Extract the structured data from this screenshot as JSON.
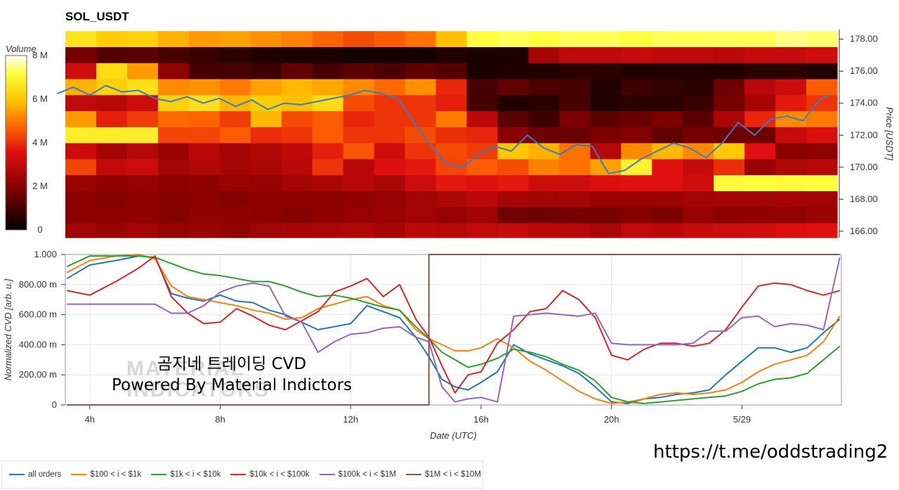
{
  "title": "SOL_USDT",
  "watermark": {
    "line1": "MATERIAL",
    "line2": "INDICATORS"
  },
  "overlay_text": {
    "line1": "곰지네 트레이딩 CVD",
    "line2": "Powered By Material Indictors"
  },
  "url_text": "https://t.me/oddstrading2",
  "legend": [
    {
      "label": "all orders",
      "color": "#1f77b4"
    },
    {
      "label": "$100 < i < $1k",
      "color": "#ff7f0e"
    },
    {
      "label": "$1k < i < $10k",
      "color": "#2ca02c"
    },
    {
      "label": "$10k < i < $100k",
      "color": "#d62728"
    },
    {
      "label": "$100k < i < $1M",
      "color": "#9467bd"
    },
    {
      "label": "$1M < i < $10M",
      "color": "#8c564b"
    }
  ],
  "chart_data": [
    {
      "type": "heatmap",
      "title": "SOL_USDT",
      "colorbar_label": "Volume",
      "colorbar_ticks": [
        "0",
        "2 M",
        "4 M",
        "6 M",
        "8 M"
      ],
      "colorbar_range": [
        0,
        8
      ],
      "ylabel": "Price [USDT]",
      "yticks": [
        "166.00",
        "168.00",
        "170.00",
        "172.00",
        "174.00",
        "176.00",
        "178.00"
      ],
      "ylim": [
        165.6,
        178.6
      ],
      "price_series": {
        "x": [
          3.0,
          3.5,
          4.0,
          4.5,
          5.0,
          5.5,
          6.0,
          6.5,
          7.0,
          7.5,
          8.0,
          8.5,
          9.0,
          9.5,
          10.0,
          10.5,
          11.0,
          11.5,
          12.0,
          12.5,
          13.0,
          13.5,
          14.0,
          14.5,
          15.0,
          15.5,
          16.0,
          16.5,
          17.0,
          17.5,
          18.0,
          18.5,
          19.0,
          19.5,
          20.0,
          20.5,
          21.0,
          21.5,
          22.0,
          22.5,
          23.0,
          23.5,
          24.0,
          24.5,
          25.0,
          25.5,
          26.0,
          26.5,
          26.8
        ],
        "y": [
          174.6,
          175.0,
          174.5,
          175.1,
          174.7,
          174.8,
          174.3,
          174.1,
          174.4,
          174.0,
          174.3,
          173.8,
          174.2,
          173.6,
          174.0,
          173.9,
          174.1,
          174.3,
          174.5,
          174.8,
          174.6,
          174.3,
          172.8,
          171.4,
          170.2,
          170.0,
          170.8,
          171.3,
          171.0,
          172.0,
          171.2,
          170.8,
          171.4,
          171.3,
          169.6,
          169.8,
          170.5,
          171.0,
          171.5,
          171.2,
          170.6,
          171.5,
          172.8,
          172.0,
          173.0,
          173.2,
          172.9,
          174.2,
          174.5
        ]
      },
      "rows": [
        {
          "price": 178.0,
          "values": [
            6.6,
            6.1,
            6.2,
            5.7,
            5.4,
            5.5,
            5.3,
            5.1,
            4.7,
            4.4,
            4.6,
            4.9,
            5.9,
            7.2,
            7.3,
            7.2,
            7.3,
            7.3,
            7.2,
            7.3,
            7.3,
            7.3,
            7.3,
            7.5,
            7.4
          ]
        },
        {
          "price": 177.0,
          "values": [
            1.7,
            1.2,
            1.3,
            1.0,
            0.8,
            0.6,
            0.5,
            0.4,
            0.4,
            0.3,
            0.3,
            0.3,
            0.5,
            0.4,
            0.4,
            2.5,
            3.0,
            3.0,
            3.1,
            3.0,
            3.0,
            2.9,
            3.1,
            3.1,
            3.3
          ]
        },
        {
          "price": 176.0,
          "values": [
            3.3,
            6.4,
            5.4,
            2.1,
            1.0,
            1.0,
            0.9,
            1.4,
            1.0,
            1.3,
            1.1,
            1.4,
            1.2,
            0.4,
            0.5,
            0.5,
            0.6,
            0.6,
            0.5,
            0.5,
            0.5,
            0.5,
            0.6,
            0.6,
            0.5
          ]
        },
        {
          "price": 175.0,
          "values": [
            5.7,
            6.2,
            6.5,
            5.2,
            5.3,
            5.0,
            5.5,
            5.8,
            5.6,
            5.2,
            4.8,
            5.3,
            3.9,
            1.0,
            1.4,
            1.1,
            1.0,
            0.5,
            0.9,
            0.7,
            0.6,
            1.6,
            2.8,
            3.2,
            4.6
          ]
        },
        {
          "price": 174.0,
          "values": [
            3.0,
            2.8,
            3.2,
            6.2,
            6.5,
            5.8,
            6.1,
            5.9,
            6.4,
            4.4,
            4.1,
            4.1,
            3.8,
            1.0,
            0.5,
            0.6,
            1.0,
            0.5,
            0.6,
            0.6,
            0.8,
            1.7,
            2.5,
            3.7,
            4.1
          ]
        },
        {
          "price": 173.0,
          "values": [
            5.4,
            3.8,
            4.2,
            4.8,
            4.7,
            4.2,
            5.8,
            4.4,
            4.6,
            3.9,
            4.1,
            4.1,
            5.0,
            2.9,
            1.3,
            0.9,
            1.8,
            1.3,
            1.5,
            1.8,
            1.3,
            2.6,
            3.9,
            5.2,
            5.0
          ]
        },
        {
          "price": 172.0,
          "values": [
            6.8,
            6.8,
            6.8,
            4.3,
            4.3,
            4.6,
            4.0,
            4.1,
            4.6,
            4.1,
            4.1,
            4.4,
            4.0,
            3.9,
            2.0,
            1.6,
            1.5,
            1.8,
            1.9,
            1.4,
            1.7,
            1.6,
            1.6,
            3.1,
            3.5
          ]
        },
        {
          "price": 171.0,
          "values": [
            3.2,
            2.5,
            2.8,
            2.3,
            2.9,
            2.5,
            2.7,
            3.0,
            3.8,
            4.5,
            3.3,
            4.1,
            4.4,
            4.2,
            6.0,
            5.7,
            4.9,
            2.8,
            5.2,
            5.8,
            5.2,
            6.0,
            3.6,
            2.0,
            2.1
          ]
        },
        {
          "price": 170.0,
          "values": [
            4.3,
            3.0,
            3.2,
            2.4,
            2.7,
            2.5,
            2.6,
            2.8,
            4.1,
            2.8,
            3.5,
            3.7,
            4.3,
            4.6,
            4.4,
            5.1,
            4.9,
            5.5,
            6.9,
            3.6,
            3.1,
            4.0,
            2.3,
            2.7,
            2.8
          ]
        },
        {
          "price": 169.0,
          "values": [
            2.3,
            2.1,
            2.2,
            2.0,
            2.1,
            2.3,
            2.2,
            2.5,
            2.6,
            2.8,
            2.6,
            3.2,
            3.7,
            3.6,
            3.7,
            3.2,
            3.2,
            3.5,
            3.6,
            3.6,
            3.3,
            7.1,
            7.2,
            7.1,
            7.2
          ]
        },
        {
          "price": 168.0,
          "values": [
            2.0,
            1.9,
            2.0,
            1.9,
            2.0,
            1.9,
            2.1,
            2.0,
            2.0,
            2.1,
            2.2,
            2.4,
            2.6,
            2.9,
            2.5,
            2.4,
            2.5,
            2.3,
            2.3,
            2.3,
            2.4,
            2.5,
            2.4,
            2.5,
            2.4
          ]
        },
        {
          "price": 167.0,
          "values": [
            2.0,
            2.0,
            2.1,
            1.9,
            2.1,
            2.1,
            2.0,
            1.9,
            2.1,
            2.2,
            2.3,
            2.4,
            2.2,
            2.4,
            1.6,
            1.6,
            1.7,
            1.7,
            1.9,
            1.8,
            2.2,
            2.0,
            2.1,
            2.1,
            2.3
          ]
        },
        {
          "price": 166.0,
          "values": [
            2.4,
            2.3,
            2.5,
            2.2,
            2.3,
            2.1,
            2.4,
            2.5,
            2.6,
            2.7,
            2.5,
            2.9,
            2.8,
            3.0,
            3.1,
            2.9,
            2.8,
            2.6,
            3.0,
            2.9,
            3.1,
            3.2,
            3.3,
            3.5,
            3.6
          ]
        }
      ]
    },
    {
      "type": "line",
      "xlabel": "Date (UTC)",
      "ylabel": "Normalized CVD [arb. u.]",
      "xticks": [
        {
          "x": 4,
          "label": "4h"
        },
        {
          "x": 8,
          "label": "8h"
        },
        {
          "x": 12,
          "label": "12h"
        },
        {
          "x": 16,
          "label": "16h"
        },
        {
          "x": 20,
          "label": "20h"
        },
        {
          "x": 24,
          "label": "5/29"
        }
      ],
      "xlim": [
        3.25,
        27.05
      ],
      "yticks": [
        "0",
        "200.00 m",
        "400.00 m",
        "600.00 m",
        "800.00 m",
        "1.000"
      ],
      "ylim": [
        0,
        1
      ],
      "grid": true,
      "x": [
        3.3,
        4.0,
        4.8,
        5.5,
        6.0,
        6.5,
        7.0,
        7.5,
        8.0,
        8.5,
        9.0,
        9.5,
        10.0,
        10.5,
        11.0,
        11.5,
        12.0,
        12.5,
        13.0,
        13.5,
        14.0,
        14.4,
        14.8,
        15.2,
        15.6,
        16.0,
        16.5,
        17.0,
        17.5,
        18.0,
        18.5,
        19.0,
        19.5,
        20.0,
        20.5,
        21.0,
        21.5,
        22.0,
        22.5,
        23.0,
        23.5,
        24.0,
        24.5,
        25.0,
        25.5,
        26.0,
        26.5,
        27.0
      ],
      "series": [
        {
          "name": "all orders",
          "values": [
            0.84,
            0.93,
            0.96,
            0.99,
            0.98,
            0.74,
            0.71,
            0.69,
            0.73,
            0.69,
            0.68,
            0.63,
            0.6,
            0.55,
            0.5,
            0.52,
            0.54,
            0.66,
            0.62,
            0.58,
            0.45,
            0.32,
            0.17,
            0.12,
            0.1,
            0.15,
            0.22,
            0.4,
            0.34,
            0.3,
            0.26,
            0.21,
            0.12,
            0.02,
            0.01,
            0.04,
            0.05,
            0.07,
            0.08,
            0.1,
            0.2,
            0.29,
            0.38,
            0.38,
            0.35,
            0.38,
            0.48,
            0.57
          ]
        },
        {
          "name": "$100 < i < $1k",
          "values": [
            0.88,
            0.96,
            0.99,
            1.0,
            0.97,
            0.79,
            0.72,
            0.7,
            0.68,
            0.66,
            0.63,
            0.61,
            0.57,
            0.58,
            0.64,
            0.67,
            0.7,
            0.72,
            0.66,
            0.63,
            0.5,
            0.44,
            0.4,
            0.36,
            0.36,
            0.38,
            0.44,
            0.38,
            0.29,
            0.23,
            0.16,
            0.09,
            0.04,
            0.01,
            0.02,
            0.04,
            0.07,
            0.08,
            0.07,
            0.08,
            0.1,
            0.15,
            0.22,
            0.27,
            0.3,
            0.33,
            0.42,
            0.59
          ]
        },
        {
          "name": "$1k < i < $10k",
          "values": [
            0.92,
            0.99,
            0.99,
            0.99,
            0.98,
            0.94,
            0.9,
            0.87,
            0.86,
            0.84,
            0.82,
            0.82,
            0.79,
            0.75,
            0.72,
            0.73,
            0.71,
            0.68,
            0.65,
            0.63,
            0.52,
            0.44,
            0.35,
            0.3,
            0.25,
            0.27,
            0.31,
            0.37,
            0.35,
            0.32,
            0.27,
            0.23,
            0.16,
            0.05,
            0.02,
            0.01,
            0.02,
            0.03,
            0.04,
            0.05,
            0.06,
            0.09,
            0.14,
            0.17,
            0.18,
            0.21,
            0.3,
            0.39
          ]
        },
        {
          "name": "$10k < i < $100k",
          "values": [
            0.76,
            0.73,
            0.82,
            0.91,
            0.99,
            0.72,
            0.61,
            0.54,
            0.55,
            0.64,
            0.59,
            0.53,
            0.5,
            0.56,
            0.62,
            0.75,
            0.79,
            0.84,
            0.72,
            0.8,
            0.57,
            0.45,
            0.26,
            0.08,
            0.2,
            0.22,
            0.41,
            0.5,
            0.62,
            0.64,
            0.76,
            0.7,
            0.58,
            0.33,
            0.3,
            0.37,
            0.41,
            0.41,
            0.39,
            0.41,
            0.5,
            0.65,
            0.79,
            0.81,
            0.8,
            0.76,
            0.73,
            0.76
          ]
        },
        {
          "name": "$100k < i < $1M",
          "values": [
            0.67,
            0.67,
            0.67,
            0.67,
            0.67,
            0.61,
            0.61,
            0.66,
            0.75,
            0.79,
            0.81,
            0.79,
            0.59,
            0.55,
            0.35,
            0.42,
            0.47,
            0.48,
            0.51,
            0.52,
            0.45,
            0.42,
            0.12,
            0.02,
            0.04,
            0.05,
            0.02,
            0.59,
            0.6,
            0.61,
            0.6,
            0.59,
            0.61,
            0.41,
            0.4,
            0.4,
            0.4,
            0.4,
            0.41,
            0.49,
            0.49,
            0.58,
            0.59,
            0.52,
            0.54,
            0.53,
            0.5,
            0.98
          ]
        },
        {
          "name": "$1M < i < $10M",
          "values": [
            0,
            0,
            0,
            0,
            0,
            0,
            0,
            0,
            0,
            0,
            0,
            0,
            0,
            0,
            0,
            0,
            0,
            0,
            0,
            0,
            0,
            1.0,
            1.0,
            1.0,
            1.0,
            1.0,
            1.0,
            1.0,
            1.0,
            1.0,
            1.0,
            1.0,
            1.0,
            1.0,
            1.0,
            1.0,
            1.0,
            1.0,
            1.0,
            1.0,
            1.0,
            1.0,
            1.0,
            1.0,
            1.0,
            1.0,
            1.0,
            1.0
          ]
        }
      ]
    }
  ]
}
